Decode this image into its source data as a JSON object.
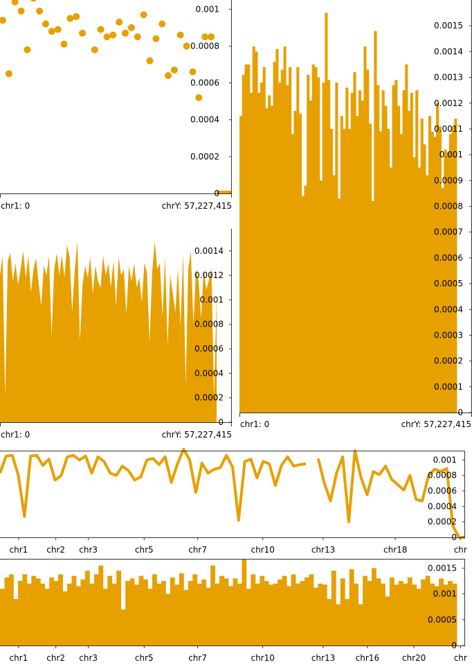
{
  "colors": {
    "series": "#e6a000",
    "axis": "#333333",
    "text": "#000000"
  },
  "chart_data": [
    {
      "type": "scatter",
      "name_id": "panel-top-left",
      "xrange": [
        "chr1: 0",
        "chrY: 57,227,415"
      ],
      "ylim": [
        0,
        0.00105
      ],
      "yticks": [
        0,
        0.0002,
        0.0004,
        0.0006,
        0.0008,
        0.001
      ],
      "ytick_labels": [
        "0",
        "0.0002",
        "0.0004",
        "0.0006",
        "0.0008",
        "0.001"
      ],
      "x_labels": [
        "chr1: 0",
        "chrY: 57,227,415"
      ],
      "values": [
        0.00094,
        0.00065,
        0.00104,
        0.00099,
        0.00078,
        0.00106,
        0.00099,
        0.00092,
        0.00088,
        0.00089,
        0.00081,
        0.00095,
        0.00096,
        0.00087,
        0.00109,
        0.00078,
        0.00089,
        0.00085,
        0.00086,
        0.00093,
        0.00087,
        0.0009,
        0.00085,
        0.00097,
        0.00072,
        0.00084,
        0.00092,
        0.00064,
        0.00067,
        0.00086,
        0.0008,
        0.00066,
        0.00052,
        0.00085,
        0.00085
      ]
    },
    {
      "type": "bar",
      "name_id": "panel-right-tall",
      "ylim": [
        0,
        0.0016
      ],
      "yticks": [
        0,
        0.0001,
        0.0002,
        0.0003,
        0.0004,
        0.0005,
        0.0006,
        0.0007,
        0.0008,
        0.0009,
        0.001,
        0.0011,
        0.0012,
        0.0013,
        0.0014,
        0.0015
      ],
      "ytick_labels": [
        "0",
        "0.0001",
        "0.0002",
        "0.0003",
        "0.0004",
        "0.0005",
        "0.0006",
        "0.0007",
        "0.0008",
        "0.0009",
        "0.001",
        "0.0011",
        "0.0012",
        "0.0013",
        "0.0014",
        "0.0015"
      ],
      "x_labels": [
        "chr1: 0",
        "chrY: 57,227,415"
      ],
      "values": [
        0.00115,
        0.00131,
        0.00135,
        0.00135,
        0.00124,
        0.00142,
        0.0014,
        0.00124,
        0.00128,
        0.00134,
        0.00118,
        0.00123,
        0.00119,
        0.00136,
        0.00141,
        0.00128,
        0.00133,
        0.00142,
        0.00127,
        0.00134,
        0.00108,
        0.00117,
        0.00134,
        0.00116,
        0.00084,
        0.00088,
        0.00131,
        0.00121,
        0.00135,
        0.00134,
        0.0013,
        0.0009,
        0.00128,
        0.00155,
        0.00129,
        0.0011,
        0.00092,
        0.00128,
        0.00083,
        0.00115,
        0.0011,
        0.00126,
        0.0011,
        0.00124,
        0.00132,
        0.00115,
        0.00125,
        0.00121,
        0.00142,
        0.00133,
        0.00112,
        0.00082,
        0.00148,
        0.00127,
        0.00109,
        0.00125,
        0.00119,
        0.0011,
        0.00095,
        0.00127,
        0.00129,
        0.00119,
        0.00108,
        0.00125,
        0.00135,
        0.00117,
        0.00124,
        0.00099,
        0.00125,
        0.00095,
        0.00114,
        0.00104,
        0.00092,
        0.00115,
        0.00109,
        0.00107,
        0.0012,
        0.00111,
        0.00087,
        0.00102,
        0.00101,
        0.00108,
        0.00111,
        0.00114
      ]
    },
    {
      "type": "area",
      "name_id": "panel-middle-left",
      "ylim": [
        0,
        0.00158
      ],
      "yticks": [
        0,
        0.0002,
        0.0004,
        0.0006,
        0.0008,
        0.001,
        0.0012,
        0.0014
      ],
      "ytick_labels": [
        "0",
        "0.0002",
        "0.0004",
        "0.0006",
        "0.0008",
        "0.001",
        "0.0012",
        "0.0014"
      ],
      "x_labels": [
        "chr1: 0",
        "chrY: 57,227,415"
      ],
      "values": [
        0.0012,
        0.00136,
        0.0002,
        0.00132,
        0.00138,
        0.00115,
        0.0013,
        0.00112,
        0.00125,
        0.0014,
        0.00118,
        0.00136,
        0.00106,
        0.00125,
        0.00134,
        0.00113,
        0.00095,
        0.00128,
        0.0012,
        0.00136,
        0.0007,
        0.00125,
        0.00138,
        0.0012,
        0.00136,
        0.00118,
        0.00145,
        0.00135,
        0.0009,
        0.00125,
        0.00148,
        0.00066,
        0.00112,
        0.00128,
        0.00118,
        0.00135,
        0.00105,
        0.00128,
        0.00115,
        0.0011,
        0.00136,
        0.0012,
        0.0013,
        0.0011,
        0.00132,
        0.00095,
        0.00135,
        0.0012,
        0.00125,
        0.00088,
        0.00128,
        0.00115,
        0.0013,
        0.0011,
        0.00118,
        0.00098,
        0.0013,
        0.00122,
        0.00065,
        0.00122,
        0.00148,
        0.00125,
        0.0013,
        0.00086,
        0.00135,
        0.00062,
        0.0012,
        0.00105,
        0.0009,
        0.00126,
        0.00078,
        0.00138,
        0.0003,
        0.00125,
        0.0014,
        0.0008,
        0.00125,
        0.00116,
        0.00085,
        0.00125,
        0.00108,
        0.00116,
        0.00126,
        0.0002,
        0.00102
      ]
    },
    {
      "type": "line",
      "name_id": "panel-line",
      "ylim": [
        0,
        0.00112
      ],
      "yticks": [
        0,
        0.0002,
        0.0004,
        0.0006,
        0.0008,
        0.001
      ],
      "ytick_labels": [
        "0",
        "0.0002",
        "0.0004",
        "0.0006",
        "0.0008",
        "0.001"
      ],
      "x_labels": [
        "chr1",
        "chr2",
        "chr3",
        "chr5",
        "chr7",
        "chr10",
        "chr13",
        "chr18",
        "chr"
      ],
      "x_label_fracs": [
        0.04,
        0.12,
        0.19,
        0.31,
        0.425,
        0.565,
        0.695,
        0.85,
        0.99
      ],
      "values": [
        0.00083,
        0.00105,
        0.00106,
        0.0008,
        0.00027,
        0.00105,
        0.00106,
        0.00093,
        0.00101,
        0.00074,
        0.0008,
        0.00104,
        0.00106,
        0.001,
        0.00105,
        0.00083,
        0.00104,
        0.00098,
        0.00083,
        0.0008,
        0.00092,
        0.00086,
        0.00074,
        0.00078,
        0.001,
        0.00102,
        0.00094,
        0.00104,
        0.00071,
        0.00095,
        0.00114,
        0.001,
        0.00058,
        0.00096,
        0.00083,
        0.00088,
        0.0009,
        0.00106,
        0.00091,
        0.00022,
        0.00098,
        0.00101,
        0.00077,
        0.00098,
        0.00095,
        0.00067,
        0.00093,
        0.00104,
        0.00092,
        0.00094,
        0.00095,
        null,
        0.00102,
        0.0007,
        0.00047,
        0.00083,
        0.00104,
        0.0002,
        0.00112,
        0.00077,
        0.00055,
        0.00085,
        0.00081,
        0.00092,
        0.00075,
        0.00068,
        0.00061,
        0.0008,
        0.00049,
        0.00047,
        0.00079,
        0.00088,
        0.00085,
        0.00089,
        0.00015,
        0.0,
        0.0
      ]
    },
    {
      "type": "bar",
      "name_id": "panel-bottom-bars",
      "ylim": [
        0,
        0.00168
      ],
      "yticks": [
        0,
        0.0005,
        0.001,
        0.0015
      ],
      "ytick_labels": [
        "0",
        "0.0005",
        "0.001",
        "0.0015"
      ],
      "x_labels": [
        "chr1",
        "chr2",
        "chr3",
        "chr5",
        "chr7",
        "chr10",
        "chr13",
        "chr16",
        "chr20",
        "chr"
      ],
      "x_label_fracs": [
        0.04,
        0.12,
        0.19,
        0.31,
        0.425,
        0.565,
        0.695,
        0.79,
        0.89,
        0.99
      ],
      "values": [
        0.0011,
        0.00132,
        0.00138,
        0.0009,
        0.00125,
        0.00138,
        0.0012,
        0.00135,
        0.0013,
        0.0012,
        0.0011,
        0.00132,
        0.00125,
        0.00138,
        0.00105,
        0.0012,
        0.00135,
        0.00115,
        0.00128,
        0.00145,
        0.0012,
        0.00138,
        0.00155,
        0.0011,
        0.00135,
        0.0012,
        0.00145,
        0.0007,
        0.00125,
        0.0013,
        0.00118,
        0.00135,
        0.00128,
        0.0011,
        0.00138,
        0.0012,
        0.00125,
        0.001,
        0.00132,
        0.00118,
        0.0014,
        0.00108,
        0.00125,
        0.00138,
        0.0012,
        0.00128,
        0.00112,
        0.00155,
        0.0012,
        0.00135,
        0.0013,
        0.00115,
        0.0013,
        0.0012,
        0.00168,
        0.0011,
        0.00138,
        0.0012,
        0.00135,
        0.00125,
        0.00118,
        0.0012,
        0.00128,
        0.00135,
        0.00115,
        0.00138,
        0.0012,
        0.00125,
        0.00132,
        0.00138,
        0.00112,
        0.0012,
        0.00118,
        0.0009,
        0.00145,
        0.0008,
        0.0013,
        0.0009,
        0.00148,
        0.0012,
        0.0008,
        0.00135,
        0.00125,
        0.0015,
        0.0013,
        0.0012,
        0.00095,
        0.00132,
        0.00118,
        0.00125,
        0.0012,
        0.00132,
        0.00118,
        0.0011,
        0.00128,
        0.00135,
        0.0012,
        0.00115,
        0.0013,
        0.00118,
        0.00125,
        0.0012
      ]
    }
  ]
}
